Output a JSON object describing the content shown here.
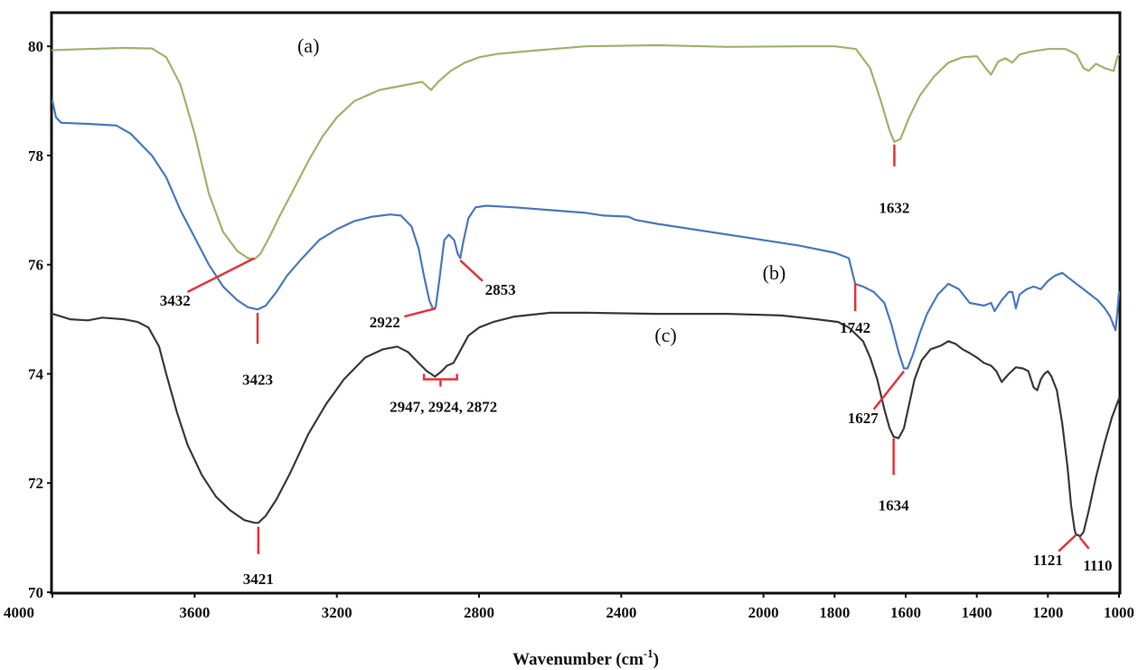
{
  "chart_data": {
    "type": "line",
    "title": "",
    "xlabel": "Wavenumber (cm",
    "xlabel_superscript": "-1",
    "xlabel_suffix": ")",
    "ylabel": "",
    "xlim": [
      4000,
      1000
    ],
    "ylim": [
      70,
      80.6
    ],
    "x_reversed": true,
    "grid": false,
    "xticks": [
      4000,
      3600,
      3200,
      2800,
      2400,
      2000,
      1800,
      1600,
      1400,
      1200,
      1000
    ],
    "xtick_labels": [
      "4000",
      "3600",
      "3200",
      "2800",
      "2400",
      "2000",
      "1800",
      "1600",
      "1400",
      "1200",
      "1000"
    ],
    "yticks": [
      70,
      72,
      74,
      76,
      78,
      80
    ],
    "ytick_labels": [
      "70",
      "72",
      "74",
      "76",
      "78",
      "80"
    ],
    "series": [
      {
        "name": "(a)",
        "color": "#9cb56a",
        "label_at": [
          3280,
          80.0
        ],
        "points": [
          [
            4000,
            79.93
          ],
          [
            3900,
            79.95
          ],
          [
            3800,
            79.97
          ],
          [
            3720,
            79.96
          ],
          [
            3680,
            79.8
          ],
          [
            3640,
            79.3
          ],
          [
            3600,
            78.4
          ],
          [
            3560,
            77.3
          ],
          [
            3520,
            76.6
          ],
          [
            3480,
            76.25
          ],
          [
            3450,
            76.12
          ],
          [
            3432,
            76.1
          ],
          [
            3415,
            76.2
          ],
          [
            3390,
            76.5
          ],
          [
            3360,
            76.9
          ],
          [
            3320,
            77.4
          ],
          [
            3280,
            77.9
          ],
          [
            3240,
            78.35
          ],
          [
            3200,
            78.7
          ],
          [
            3150,
            79.0
          ],
          [
            3080,
            79.2
          ],
          [
            3000,
            79.3
          ],
          [
            2960,
            79.35
          ],
          [
            2935,
            79.2
          ],
          [
            2915,
            79.35
          ],
          [
            2880,
            79.55
          ],
          [
            2840,
            79.7
          ],
          [
            2800,
            79.8
          ],
          [
            2750,
            79.86
          ],
          [
            2650,
            79.92
          ],
          [
            2500,
            80.0
          ],
          [
            2300,
            80.02
          ],
          [
            2100,
            79.99
          ],
          [
            1900,
            80.0
          ],
          [
            1800,
            80.0
          ],
          [
            1740,
            79.95
          ],
          [
            1700,
            79.6
          ],
          [
            1670,
            79.0
          ],
          [
            1645,
            78.45
          ],
          [
            1632,
            78.25
          ],
          [
            1615,
            78.3
          ],
          [
            1590,
            78.7
          ],
          [
            1560,
            79.1
          ],
          [
            1520,
            79.45
          ],
          [
            1480,
            79.7
          ],
          [
            1440,
            79.8
          ],
          [
            1400,
            79.82
          ],
          [
            1375,
            79.6
          ],
          [
            1360,
            79.48
          ],
          [
            1340,
            79.72
          ],
          [
            1320,
            79.78
          ],
          [
            1300,
            79.7
          ],
          [
            1280,
            79.85
          ],
          [
            1250,
            79.9
          ],
          [
            1200,
            79.95
          ],
          [
            1150,
            79.95
          ],
          [
            1120,
            79.85
          ],
          [
            1100,
            79.6
          ],
          [
            1085,
            79.55
          ],
          [
            1065,
            79.68
          ],
          [
            1040,
            79.6
          ],
          [
            1015,
            79.55
          ],
          [
            1005,
            79.8
          ],
          [
            1000,
            79.85
          ]
        ]
      },
      {
        "name": "(b)",
        "color": "#4a78bd",
        "label_at": [
          1970,
          75.85
        ],
        "points": [
          [
            4000,
            79.0
          ],
          [
            3990,
            78.7
          ],
          [
            3975,
            78.6
          ],
          [
            3900,
            78.58
          ],
          [
            3820,
            78.55
          ],
          [
            3780,
            78.4
          ],
          [
            3720,
            78.0
          ],
          [
            3680,
            77.6
          ],
          [
            3640,
            77.0
          ],
          [
            3600,
            76.5
          ],
          [
            3560,
            76.0
          ],
          [
            3520,
            75.6
          ],
          [
            3480,
            75.35
          ],
          [
            3450,
            75.22
          ],
          [
            3423,
            75.18
          ],
          [
            3400,
            75.25
          ],
          [
            3370,
            75.5
          ],
          [
            3340,
            75.8
          ],
          [
            3300,
            76.1
          ],
          [
            3250,
            76.45
          ],
          [
            3200,
            76.65
          ],
          [
            3150,
            76.8
          ],
          [
            3100,
            76.88
          ],
          [
            3050,
            76.92
          ],
          [
            3020,
            76.9
          ],
          [
            2990,
            76.7
          ],
          [
            2970,
            76.3
          ],
          [
            2955,
            75.8
          ],
          [
            2940,
            75.35
          ],
          [
            2929,
            75.18
          ],
          [
            2922,
            75.22
          ],
          [
            2912,
            75.7
          ],
          [
            2898,
            76.45
          ],
          [
            2885,
            76.55
          ],
          [
            2870,
            76.45
          ],
          [
            2860,
            76.2
          ],
          [
            2853,
            76.12
          ],
          [
            2845,
            76.4
          ],
          [
            2830,
            76.85
          ],
          [
            2810,
            77.05
          ],
          [
            2780,
            77.08
          ],
          [
            2700,
            77.05
          ],
          [
            2600,
            77.0
          ],
          [
            2500,
            76.95
          ],
          [
            2450,
            76.9
          ],
          [
            2380,
            76.88
          ],
          [
            2360,
            76.82
          ],
          [
            2300,
            76.75
          ],
          [
            2200,
            76.65
          ],
          [
            2100,
            76.55
          ],
          [
            2000,
            76.45
          ],
          [
            1900,
            76.35
          ],
          [
            1800,
            76.22
          ],
          [
            1760,
            76.12
          ],
          [
            1742,
            75.65
          ],
          [
            1720,
            75.6
          ],
          [
            1690,
            75.5
          ],
          [
            1660,
            75.3
          ],
          [
            1640,
            74.9
          ],
          [
            1620,
            74.4
          ],
          [
            1605,
            74.1
          ],
          [
            1595,
            74.1
          ],
          [
            1580,
            74.35
          ],
          [
            1560,
            74.75
          ],
          [
            1540,
            75.1
          ],
          [
            1510,
            75.45
          ],
          [
            1480,
            75.65
          ],
          [
            1450,
            75.55
          ],
          [
            1420,
            75.3
          ],
          [
            1380,
            75.25
          ],
          [
            1360,
            75.3
          ],
          [
            1350,
            75.15
          ],
          [
            1330,
            75.35
          ],
          [
            1310,
            75.5
          ],
          [
            1300,
            75.5
          ],
          [
            1290,
            75.2
          ],
          [
            1280,
            75.45
          ],
          [
            1260,
            75.55
          ],
          [
            1240,
            75.6
          ],
          [
            1220,
            75.55
          ],
          [
            1200,
            75.7
          ],
          [
            1180,
            75.8
          ],
          [
            1160,
            75.85
          ],
          [
            1140,
            75.75
          ],
          [
            1120,
            75.65
          ],
          [
            1100,
            75.55
          ],
          [
            1080,
            75.45
          ],
          [
            1060,
            75.35
          ],
          [
            1040,
            75.2
          ],
          [
            1025,
            75.05
          ],
          [
            1010,
            74.8
          ],
          [
            1005,
            75.1
          ],
          [
            1000,
            75.5
          ]
        ]
      },
      {
        "name": "(c)",
        "color": "#3a3a3a",
        "label_at": [
          2275,
          74.7
        ],
        "points": [
          [
            4000,
            75.1
          ],
          [
            3950,
            75.0
          ],
          [
            3900,
            74.98
          ],
          [
            3860,
            75.03
          ],
          [
            3800,
            75.0
          ],
          [
            3760,
            74.95
          ],
          [
            3730,
            74.85
          ],
          [
            3700,
            74.5
          ],
          [
            3680,
            74.0
          ],
          [
            3650,
            73.3
          ],
          [
            3620,
            72.7
          ],
          [
            3580,
            72.15
          ],
          [
            3540,
            71.75
          ],
          [
            3500,
            71.5
          ],
          [
            3460,
            71.32
          ],
          [
            3430,
            71.27
          ],
          [
            3421,
            71.27
          ],
          [
            3400,
            71.4
          ],
          [
            3370,
            71.7
          ],
          [
            3330,
            72.2
          ],
          [
            3280,
            72.9
          ],
          [
            3230,
            73.45
          ],
          [
            3180,
            73.9
          ],
          [
            3120,
            74.3
          ],
          [
            3070,
            74.45
          ],
          [
            3030,
            74.5
          ],
          [
            3000,
            74.4
          ],
          [
            2970,
            74.2
          ],
          [
            2947,
            74.05
          ],
          [
            2935,
            74.0
          ],
          [
            2924,
            73.95
          ],
          [
            2905,
            74.05
          ],
          [
            2890,
            74.15
          ],
          [
            2872,
            74.2
          ],
          [
            2855,
            74.4
          ],
          [
            2830,
            74.7
          ],
          [
            2800,
            74.85
          ],
          [
            2760,
            74.95
          ],
          [
            2700,
            75.05
          ],
          [
            2600,
            75.12
          ],
          [
            2500,
            75.12
          ],
          [
            2300,
            75.1
          ],
          [
            2100,
            75.1
          ],
          [
            1950,
            75.07
          ],
          [
            1850,
            75.0
          ],
          [
            1790,
            74.95
          ],
          [
            1760,
            74.85
          ],
          [
            1720,
            74.6
          ],
          [
            1700,
            74.3
          ],
          [
            1680,
            73.9
          ],
          [
            1660,
            73.35
          ],
          [
            1645,
            73.0
          ],
          [
            1634,
            72.85
          ],
          [
            1620,
            72.82
          ],
          [
            1605,
            73.0
          ],
          [
            1590,
            73.45
          ],
          [
            1575,
            73.9
          ],
          [
            1555,
            74.25
          ],
          [
            1530,
            74.45
          ],
          [
            1500,
            74.52
          ],
          [
            1480,
            74.6
          ],
          [
            1460,
            74.55
          ],
          [
            1440,
            74.45
          ],
          [
            1420,
            74.38
          ],
          [
            1400,
            74.3
          ],
          [
            1380,
            74.2
          ],
          [
            1360,
            74.15
          ],
          [
            1345,
            74.05
          ],
          [
            1330,
            73.85
          ],
          [
            1310,
            74.0
          ],
          [
            1290,
            74.12
          ],
          [
            1270,
            74.1
          ],
          [
            1255,
            74.05
          ],
          [
            1240,
            73.75
          ],
          [
            1230,
            73.7
          ],
          [
            1220,
            73.9
          ],
          [
            1210,
            74.0
          ],
          [
            1200,
            74.05
          ],
          [
            1190,
            73.95
          ],
          [
            1175,
            73.7
          ],
          [
            1160,
            73.1
          ],
          [
            1145,
            72.3
          ],
          [
            1135,
            71.6
          ],
          [
            1125,
            71.15
          ],
          [
            1121,
            71.05
          ],
          [
            1115,
            71.05
          ],
          [
            1110,
            71.02
          ],
          [
            1100,
            71.1
          ],
          [
            1085,
            71.5
          ],
          [
            1065,
            72.1
          ],
          [
            1040,
            72.75
          ],
          [
            1020,
            73.2
          ],
          [
            1000,
            73.55
          ]
        ]
      }
    ],
    "annotations": [
      {
        "text": "1632",
        "line": [
          [
            1632,
            78.2
          ],
          [
            1632,
            77.8
          ]
        ],
        "label_at": [
          1632,
          77.05
        ]
      },
      {
        "text": "3432",
        "line": [
          [
            3432,
            76.12
          ],
          [
            3620,
            75.5
          ]
        ],
        "label_at": [
          3655,
          75.35
        ]
      },
      {
        "text": "3423",
        "line": [
          [
            3423,
            75.12
          ],
          [
            3423,
            74.55
          ]
        ],
        "label_at": [
          3423,
          73.9
        ]
      },
      {
        "text": "2853",
        "line": [
          [
            2853,
            76.08
          ],
          [
            2790,
            75.7
          ]
        ],
        "label_at": [
          2740,
          75.55
        ]
      },
      {
        "text": "2922",
        "line": [
          [
            2922,
            75.2
          ],
          [
            3010,
            75.05
          ]
        ],
        "label_at": [
          3065,
          74.95
        ]
      },
      {
        "text": "1742",
        "line": [
          [
            1742,
            75.65
          ],
          [
            1742,
            75.15
          ]
        ],
        "label_at": [
          1742,
          74.85
        ]
      },
      {
        "text": "1627",
        "line": [
          [
            1605,
            74.05
          ],
          [
            1690,
            73.35
          ]
        ],
        "label_at": [
          1720,
          73.2
        ]
      },
      {
        "text": "1634",
        "line": [
          [
            1634,
            72.82
          ],
          [
            1634,
            72.15
          ]
        ],
        "label_at": [
          1634,
          71.6
        ]
      },
      {
        "text": "2947, 2924, 2872",
        "bracket": [
          2955,
          2862,
          73.9
        ],
        "label_at": [
          2900,
          73.4
        ]
      },
      {
        "text": "3421",
        "line": [
          [
            3421,
            71.2
          ],
          [
            3421,
            70.7
          ]
        ],
        "label_at": [
          3421,
          70.25
        ]
      },
      {
        "text": "1121",
        "line": [
          [
            1121,
            71.05
          ],
          [
            1170,
            70.75
          ]
        ],
        "label_at": [
          1200,
          70.6
        ]
      },
      {
        "text": "1110",
        "line": [
          [
            1110,
            71.0
          ],
          [
            1085,
            70.8
          ]
        ],
        "label_at": [
          1060,
          70.5
        ]
      }
    ]
  }
}
